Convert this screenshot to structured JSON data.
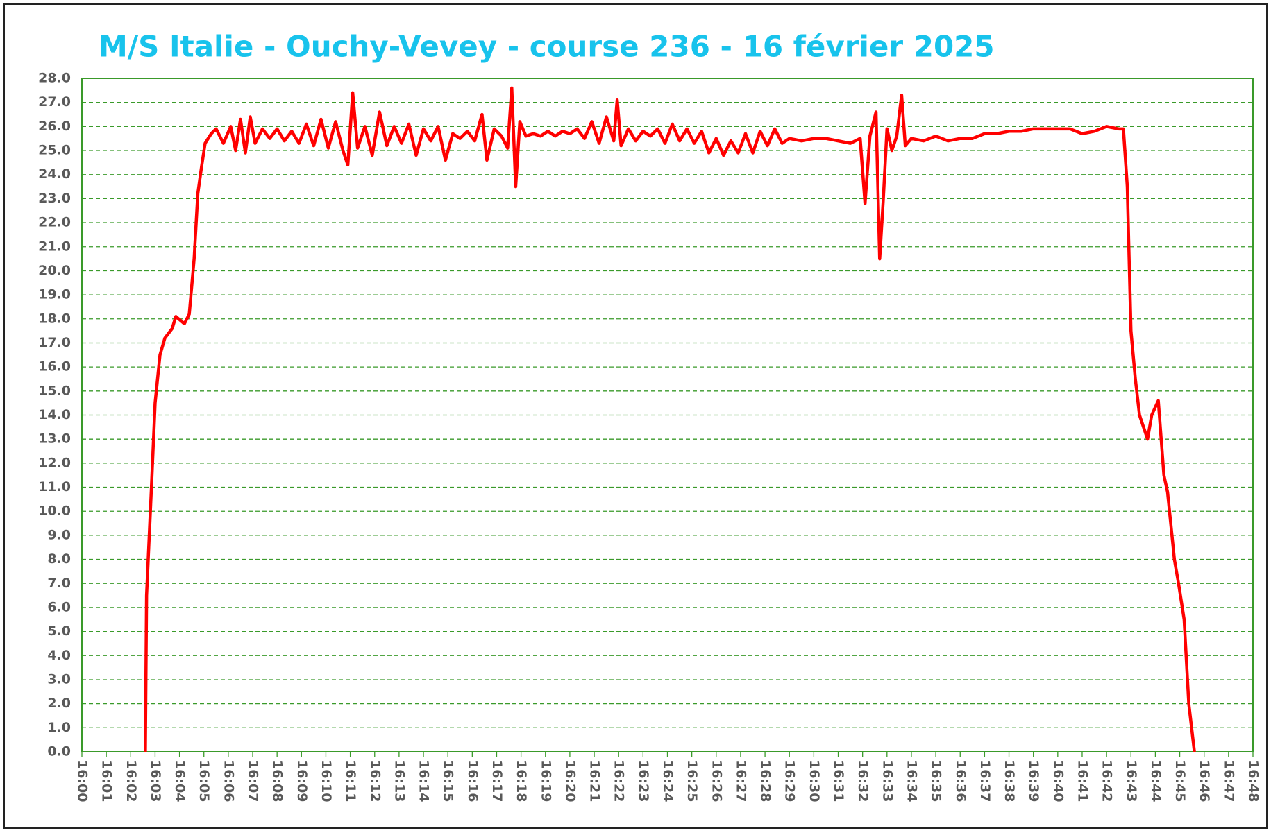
{
  "chart_data": {
    "type": "line",
    "title": "M/S Italie - Ouchy-Vevey - course 236 - 16 février 2025",
    "color": "#ff0000",
    "grid": true,
    "xlim": [
      960,
      1008
    ],
    "ylim": [
      0,
      28
    ],
    "yticks": [
      {
        "value": 0,
        "label": "0.0"
      },
      {
        "value": 1,
        "label": "1.0"
      },
      {
        "value": 2,
        "label": "2.0"
      },
      {
        "value": 3,
        "label": "3.0"
      },
      {
        "value": 4,
        "label": "4.0"
      },
      {
        "value": 5,
        "label": "5.0"
      },
      {
        "value": 6,
        "label": "6.0"
      },
      {
        "value": 7,
        "label": "7.0"
      },
      {
        "value": 8,
        "label": "8.0"
      },
      {
        "value": 9,
        "label": "9.0"
      },
      {
        "value": 10,
        "label": "10.0"
      },
      {
        "value": 11,
        "label": "11.0"
      },
      {
        "value": 12,
        "label": "12.0"
      },
      {
        "value": 13,
        "label": "13.0"
      },
      {
        "value": 14,
        "label": "14.0"
      },
      {
        "value": 15,
        "label": "15.0"
      },
      {
        "value": 16,
        "label": "16.0"
      },
      {
        "value": 17,
        "label": "17.0"
      },
      {
        "value": 18,
        "label": "18.0"
      },
      {
        "value": 19,
        "label": "19.0"
      },
      {
        "value": 20,
        "label": "20.0"
      },
      {
        "value": 21,
        "label": "21.0"
      },
      {
        "value": 22,
        "label": "22.0"
      },
      {
        "value": 23,
        "label": "23.0"
      },
      {
        "value": 24,
        "label": "24.0"
      },
      {
        "value": 25,
        "label": "25.0"
      },
      {
        "value": 26,
        "label": "26.0"
      },
      {
        "value": 27,
        "label": "27.0"
      },
      {
        "value": 28,
        "label": "28.0"
      }
    ],
    "xticks": [
      {
        "value": 960,
        "label": "16:00"
      },
      {
        "value": 961,
        "label": "16:01"
      },
      {
        "value": 962,
        "label": "16:02"
      },
      {
        "value": 963,
        "label": "16:03"
      },
      {
        "value": 964,
        "label": "16:04"
      },
      {
        "value": 965,
        "label": "16:05"
      },
      {
        "value": 966,
        "label": "16:06"
      },
      {
        "value": 967,
        "label": "16:07"
      },
      {
        "value": 968,
        "label": "16:08"
      },
      {
        "value": 969,
        "label": "16:09"
      },
      {
        "value": 970,
        "label": "16:10"
      },
      {
        "value": 971,
        "label": "16:11"
      },
      {
        "value": 972,
        "label": "16:12"
      },
      {
        "value": 973,
        "label": "16:13"
      },
      {
        "value": 974,
        "label": "16:14"
      },
      {
        "value": 975,
        "label": "16:15"
      },
      {
        "value": 976,
        "label": "16:16"
      },
      {
        "value": 977,
        "label": "16:17"
      },
      {
        "value": 978,
        "label": "16:18"
      },
      {
        "value": 979,
        "label": "16:19"
      },
      {
        "value": 980,
        "label": "16:20"
      },
      {
        "value": 981,
        "label": "16:21"
      },
      {
        "value": 982,
        "label": "16:22"
      },
      {
        "value": 983,
        "label": "16:23"
      },
      {
        "value": 984,
        "label": "16:24"
      },
      {
        "value": 985,
        "label": "16:25"
      },
      {
        "value": 986,
        "label": "16:26"
      },
      {
        "value": 987,
        "label": "16:27"
      },
      {
        "value": 988,
        "label": "16:28"
      },
      {
        "value": 989,
        "label": "16:29"
      },
      {
        "value": 990,
        "label": "16:30"
      },
      {
        "value": 991,
        "label": "16:31"
      },
      {
        "value": 992,
        "label": "16:32"
      },
      {
        "value": 993,
        "label": "16:33"
      },
      {
        "value": 994,
        "label": "16:34"
      },
      {
        "value": 995,
        "label": "16:35"
      },
      {
        "value": 996,
        "label": "16:36"
      },
      {
        "value": 997,
        "label": "16:37"
      },
      {
        "value": 998,
        "label": "16:38"
      },
      {
        "value": 999,
        "label": "16:39"
      },
      {
        "value": 1000,
        "label": "16:40"
      },
      {
        "value": 1001,
        "label": "16:41"
      },
      {
        "value": 1002,
        "label": "16:42"
      },
      {
        "value": 1003,
        "label": "16:43"
      },
      {
        "value": 1004,
        "label": "16:44"
      },
      {
        "value": 1005,
        "label": "16:45"
      },
      {
        "value": 1006,
        "label": "16:46"
      },
      {
        "value": 1007,
        "label": "16:47"
      },
      {
        "value": 1008,
        "label": "16:48"
      }
    ],
    "x": [
      962.6,
      962.65,
      962.85,
      963.0,
      963.2,
      963.4,
      963.7,
      963.85,
      964.2,
      964.4,
      964.6,
      964.75,
      964.9,
      965.05,
      965.3,
      965.5,
      965.8,
      966.1,
      966.3,
      966.5,
      966.7,
      966.9,
      967.1,
      967.4,
      967.7,
      968.0,
      968.3,
      968.6,
      968.9,
      969.2,
      969.5,
      969.8,
      970.1,
      970.4,
      970.7,
      970.9,
      971.1,
      971.3,
      971.6,
      971.9,
      972.2,
      972.5,
      972.8,
      973.1,
      973.4,
      973.7,
      974.0,
      974.3,
      974.6,
      974.9,
      975.2,
      975.5,
      975.8,
      976.1,
      976.4,
      976.6,
      976.9,
      977.2,
      977.45,
      977.62,
      977.78,
      977.95,
      978.2,
      978.5,
      978.8,
      979.1,
      979.4,
      979.7,
      980.0,
      980.3,
      980.6,
      980.9,
      981.2,
      981.5,
      981.8,
      981.94,
      982.1,
      982.4,
      982.7,
      983.0,
      983.3,
      983.6,
      983.9,
      984.2,
      984.5,
      984.8,
      985.1,
      985.4,
      985.7,
      986.0,
      986.3,
      986.6,
      986.9,
      987.2,
      987.5,
      987.8,
      988.1,
      988.4,
      988.7,
      989.0,
      989.5,
      990.0,
      990.5,
      991.0,
      991.5,
      991.9,
      992.1,
      992.3,
      992.55,
      992.7,
      992.85,
      993.0,
      993.2,
      993.4,
      993.6,
      993.75,
      994.0,
      994.5,
      995.0,
      995.5,
      996.0,
      996.5,
      997.0,
      997.5,
      998.0,
      998.5,
      999.0,
      999.5,
      1000.0,
      1000.5,
      1001.0,
      1001.5,
      1002.0,
      1002.5,
      1002.69,
      1002.85,
      1003.0,
      1003.18,
      1003.35,
      1003.68,
      1003.85,
      1004.12,
      1004.35,
      1004.5,
      1004.78,
      1004.95,
      1005.18,
      1005.37,
      1005.6
    ],
    "values": [
      0,
      6.5,
      11,
      14.5,
      16.5,
      17.2,
      17.6,
      18.1,
      17.8,
      18.2,
      20.5,
      23.2,
      24.3,
      25.3,
      25.7,
      25.9,
      25.3,
      26.0,
      25.0,
      26.3,
      24.9,
      26.4,
      25.3,
      25.9,
      25.5,
      25.9,
      25.4,
      25.8,
      25.3,
      26.1,
      25.2,
      26.3,
      25.1,
      26.2,
      25.0,
      24.4,
      27.4,
      25.1,
      26.0,
      24.8,
      26.6,
      25.2,
      26.0,
      25.3,
      26.1,
      24.8,
      25.9,
      25.4,
      26.0,
      24.6,
      25.7,
      25.5,
      25.8,
      25.4,
      26.5,
      24.6,
      25.9,
      25.6,
      25.1,
      27.6,
      23.5,
      26.2,
      25.6,
      25.7,
      25.6,
      25.8,
      25.6,
      25.8,
      25.7,
      25.9,
      25.5,
      26.2,
      25.3,
      26.4,
      25.4,
      27.1,
      25.2,
      25.9,
      25.4,
      25.8,
      25.6,
      25.9,
      25.3,
      26.1,
      25.4,
      25.9,
      25.3,
      25.8,
      24.9,
      25.5,
      24.8,
      25.4,
      24.9,
      25.7,
      24.9,
      25.8,
      25.2,
      25.9,
      25.3,
      25.5,
      25.4,
      25.5,
      25.5,
      25.4,
      25.3,
      25.5,
      22.8,
      25.6,
      26.6,
      20.5,
      23.0,
      25.9,
      25.0,
      25.6,
      27.3,
      25.2,
      25.5,
      25.4,
      25.6,
      25.4,
      25.5,
      25.5,
      25.7,
      25.7,
      25.8,
      25.8,
      25.9,
      25.9,
      25.9,
      25.9,
      25.7,
      25.8,
      26.0,
      25.9,
      25.9,
      23.5,
      17.5,
      15.5,
      14.0,
      13.0,
      14.0,
      14.6,
      11.5,
      10.8,
      8.0,
      7.0,
      5.5,
      2.0,
      0
    ]
  }
}
